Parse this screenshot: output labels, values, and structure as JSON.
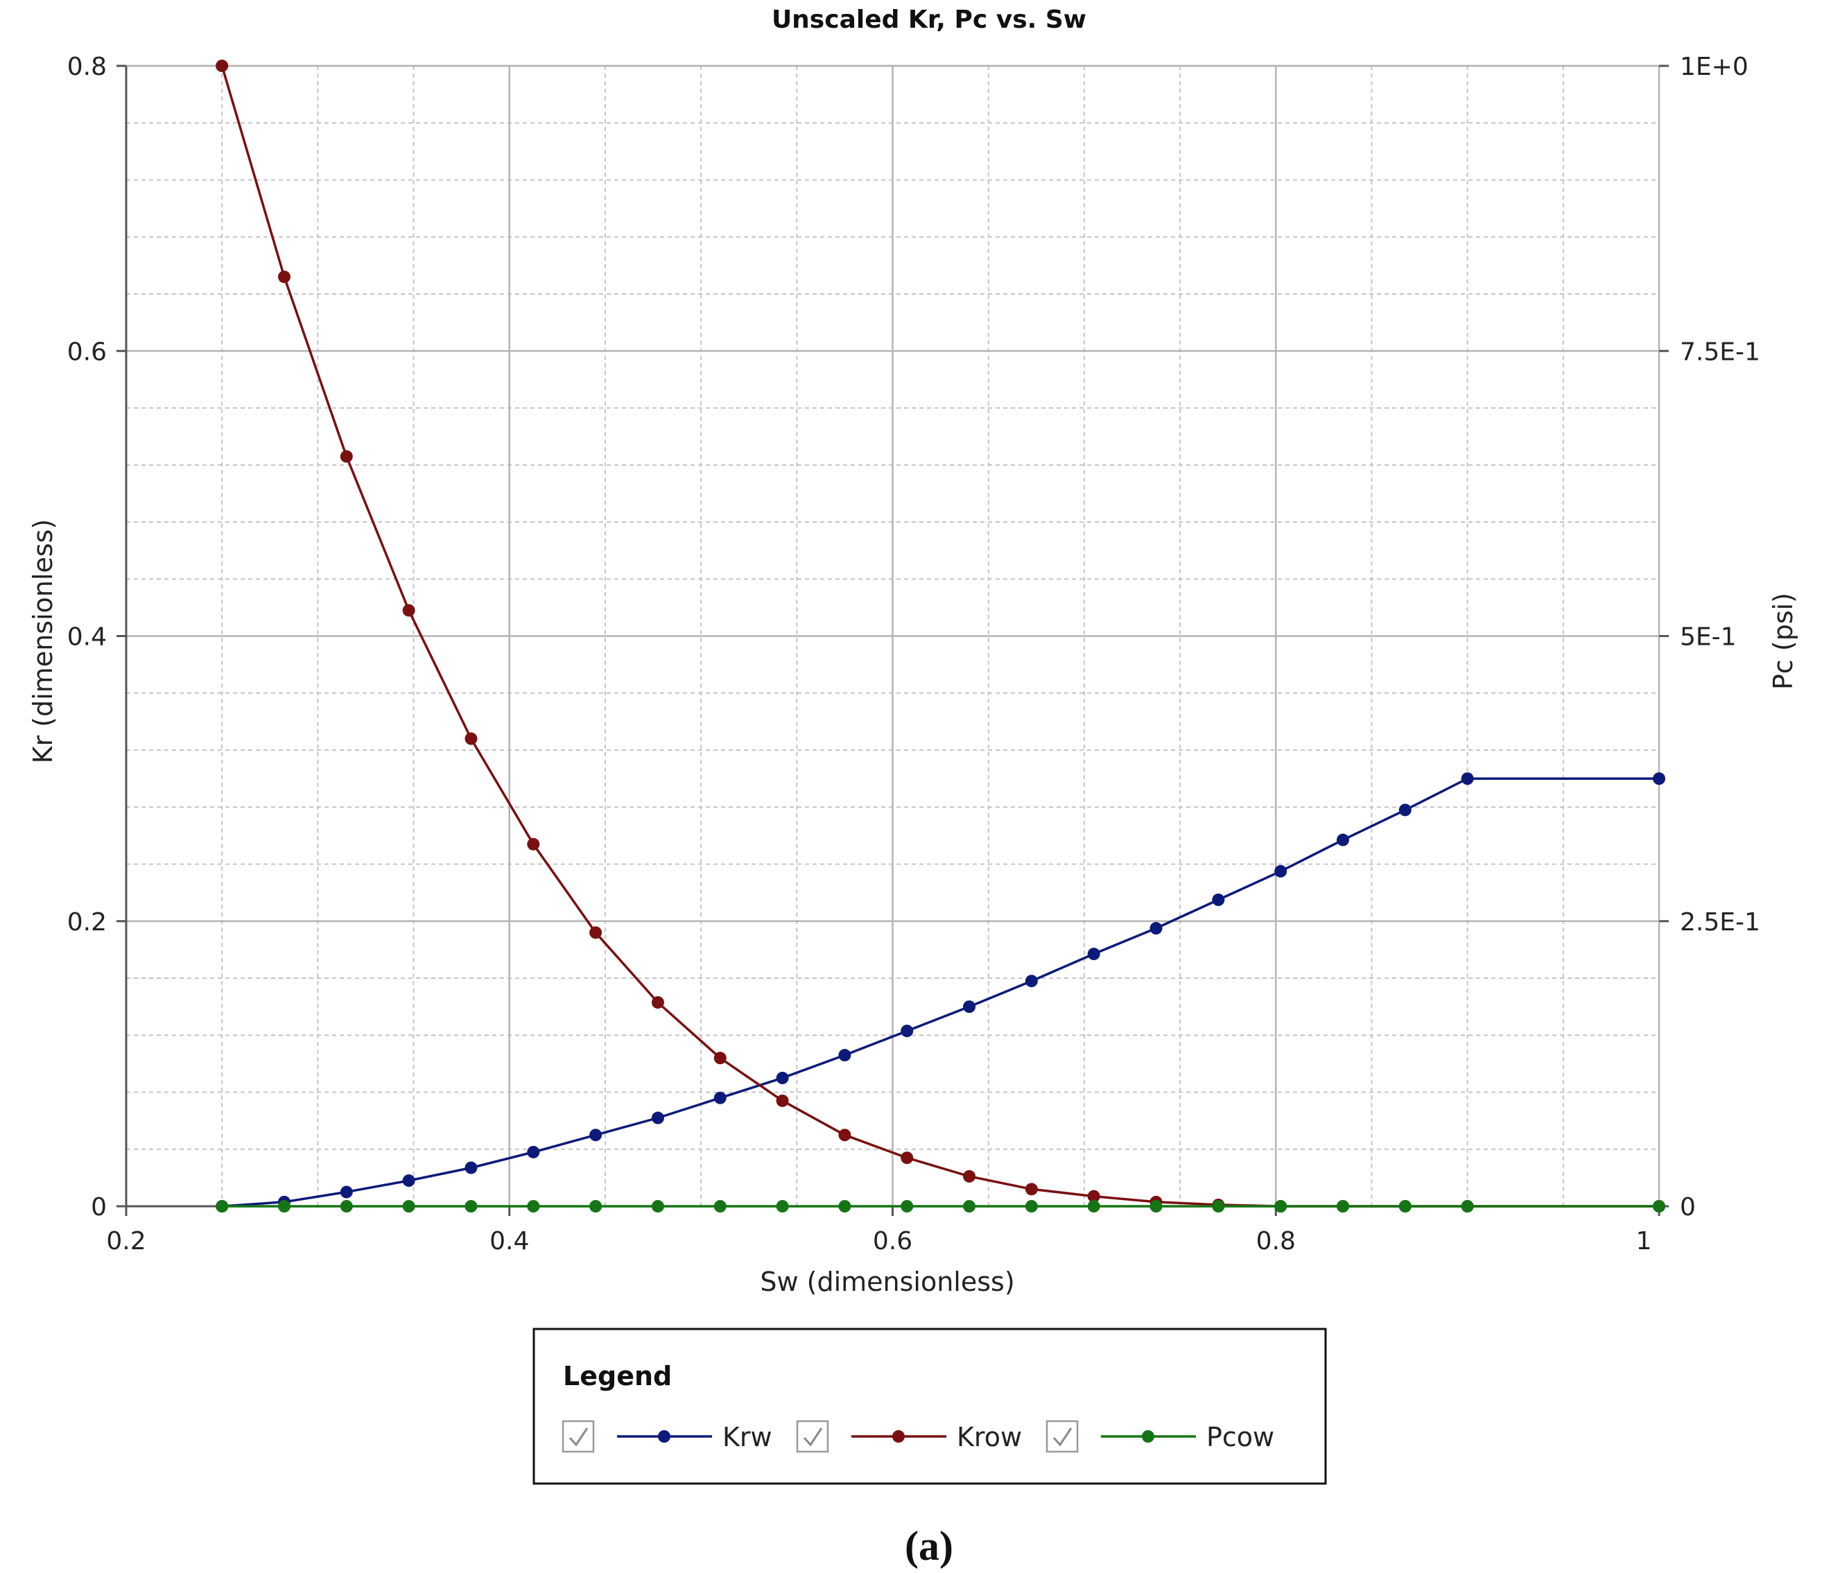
{
  "chart_data": {
    "type": "line",
    "title": "Unscaled Kr, Pc vs. Sw",
    "xlabel": "Sw (dimensionless)",
    "ylabel": "Kr (dimensionless)",
    "y2label": "Pc (psi)",
    "xlim": [
      0.2,
      1.0
    ],
    "ylim": [
      0,
      0.8
    ],
    "y2lim": [
      0,
      1.0
    ],
    "xticks": [
      "0.2",
      "0.4",
      "0.6",
      "0.8",
      "1"
    ],
    "yticks": [
      "0",
      "0.2",
      "0.4",
      "0.6",
      "0.8"
    ],
    "y2ticks": [
      "0",
      "2.5E-1",
      "5E-1",
      "7.5E-1",
      "1E+0"
    ],
    "grid": true,
    "legend_title": "Legend",
    "legend_position": "bottom",
    "series": [
      {
        "name": "Krw",
        "color": "#0c1a7a",
        "axis": "left",
        "x": [
          0.25,
          0.2825,
          0.315,
          0.3475,
          0.38,
          0.4125,
          0.445,
          0.4775,
          0.51,
          0.5425,
          0.575,
          0.6075,
          0.64,
          0.6725,
          0.705,
          0.7375,
          0.77,
          0.8025,
          0.835,
          0.8675,
          0.9,
          1.0
        ],
        "y": [
          0.0,
          0.003,
          0.01,
          0.018,
          0.027,
          0.038,
          0.05,
          0.062,
          0.076,
          0.09,
          0.106,
          0.123,
          0.14,
          0.158,
          0.177,
          0.195,
          0.215,
          0.235,
          0.257,
          0.278,
          0.3,
          0.3
        ]
      },
      {
        "name": "Krow",
        "color": "#7a1010",
        "axis": "left",
        "x": [
          0.25,
          0.2825,
          0.315,
          0.3475,
          0.38,
          0.4125,
          0.445,
          0.4775,
          0.51,
          0.5425,
          0.575,
          0.6075,
          0.64,
          0.6725,
          0.705,
          0.7375,
          0.77,
          0.8025,
          0.835,
          0.8675,
          0.9,
          1.0
        ],
        "y": [
          0.8,
          0.652,
          0.526,
          0.418,
          0.328,
          0.254,
          0.192,
          0.143,
          0.104,
          0.074,
          0.05,
          0.034,
          0.021,
          0.012,
          0.007,
          0.003,
          0.001,
          0.0,
          0.0,
          0.0,
          0.0,
          0.0
        ]
      },
      {
        "name": "Pcow",
        "color": "#157515",
        "axis": "right",
        "x": [
          0.25,
          0.2825,
          0.315,
          0.3475,
          0.38,
          0.4125,
          0.445,
          0.4775,
          0.51,
          0.5425,
          0.575,
          0.6075,
          0.64,
          0.6725,
          0.705,
          0.7375,
          0.77,
          0.8025,
          0.835,
          0.8675,
          0.9,
          1.0
        ],
        "y": [
          0,
          0,
          0,
          0,
          0,
          0,
          0,
          0,
          0,
          0,
          0,
          0,
          0,
          0,
          0,
          0,
          0,
          0,
          0,
          0,
          0,
          0
        ]
      }
    ]
  },
  "caption": "(a)"
}
